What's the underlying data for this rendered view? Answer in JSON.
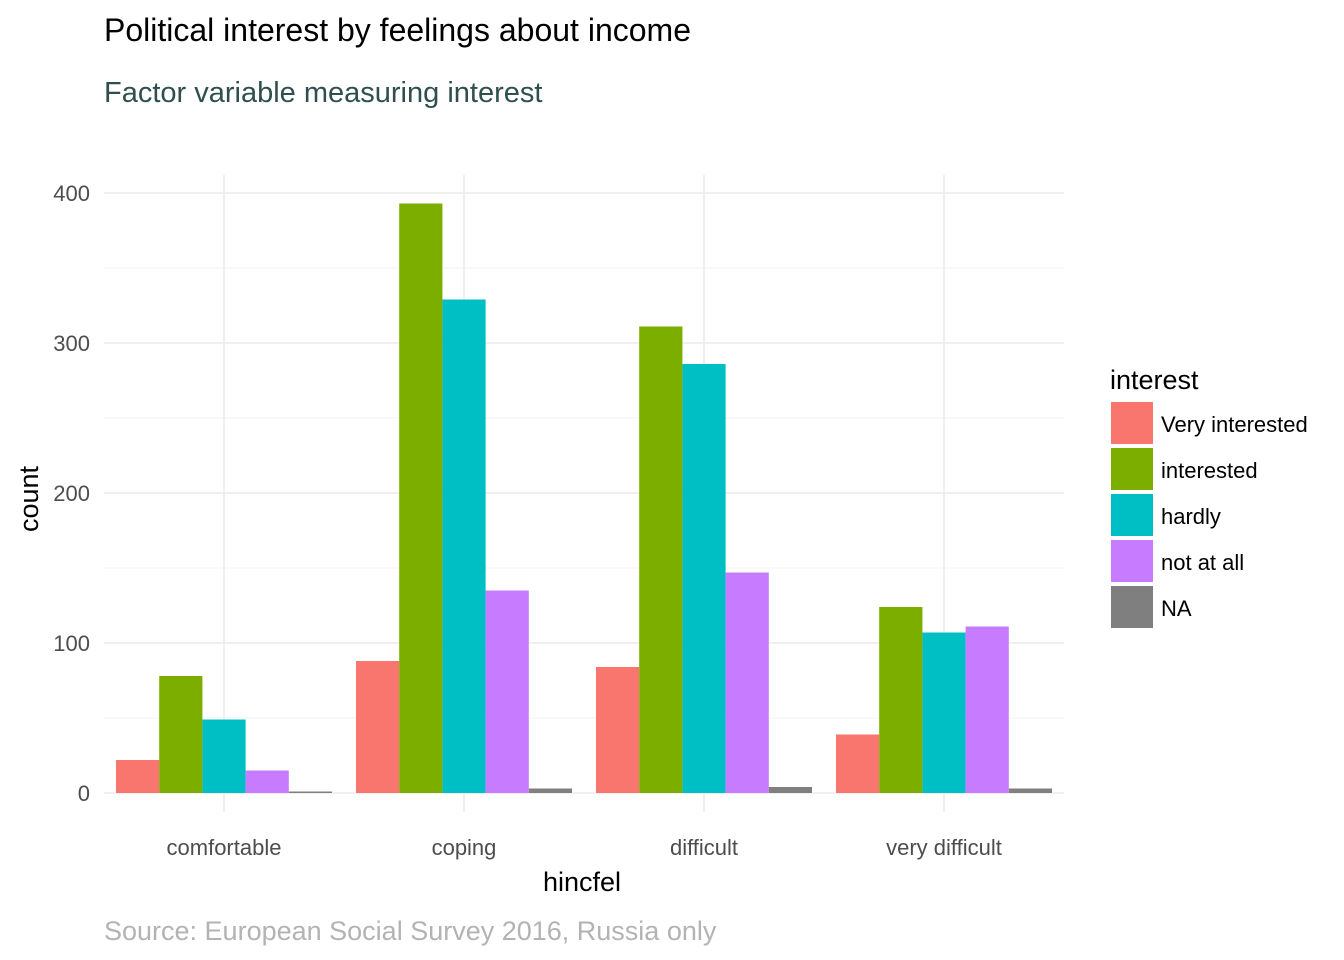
{
  "chart_data": {
    "type": "bar",
    "title": "Political interest by feelings about income",
    "subtitle": "Factor variable measuring interest",
    "caption": "Source: European Social Survey 2016, Russia only",
    "xlabel": "hincfel",
    "ylabel": "count",
    "categories": [
      "comfortable",
      "coping",
      "difficult",
      "very difficult"
    ],
    "ylim": [
      0,
      425
    ],
    "yticks": [
      0,
      100,
      200,
      300,
      400
    ],
    "grid": true,
    "legend_title": "interest",
    "legend_position": "right",
    "series": [
      {
        "name": "Very interested",
        "color": "#f8766d",
        "values": [
          22,
          88,
          84,
          39
        ]
      },
      {
        "name": "interested",
        "color": "#7cae00",
        "values": [
          78,
          393,
          311,
          124
        ]
      },
      {
        "name": "hardly",
        "color": "#00bfc4",
        "values": [
          49,
          329,
          286,
          107
        ]
      },
      {
        "name": "not at all",
        "color": "#c77cff",
        "values": [
          15,
          135,
          147,
          111
        ]
      },
      {
        "name": "NA",
        "color": "#7f7f7f",
        "values": [
          1,
          3,
          4,
          3
        ]
      }
    ]
  }
}
